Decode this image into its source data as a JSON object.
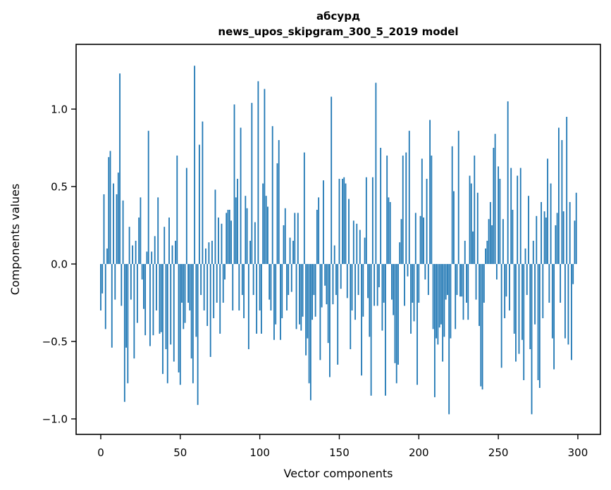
{
  "figure": {
    "background_color": "#ffffff",
    "text_color": "#000000"
  },
  "title": {
    "line1": "абсурд",
    "line2": "news_upos_skipgram_300_5_2019 model"
  },
  "axes": {
    "xlabel": "Vector components",
    "ylabel": "Components values"
  },
  "chart_data": {
    "type": "bar",
    "title": "абсурд\nnews_upos_skipgram_300_5_2019 model",
    "xlabel": "Vector components",
    "ylabel": "Components values",
    "bar_color": "#1f77b4",
    "spine_color": "#000000",
    "grid": false,
    "legend": false,
    "n_components": 300,
    "bar_width_data_units": 0.8,
    "xlim": [
      -15.5,
      314.2
    ],
    "ylim": [
      -1.1,
      1.418
    ],
    "xticks": [
      0,
      50,
      100,
      150,
      200,
      250,
      300
    ],
    "xtick_labels": [
      "0",
      "50",
      "100",
      "150",
      "200",
      "250",
      "300"
    ],
    "yticks": [
      1.0,
      0.5,
      0.0,
      -0.5,
      -1.0
    ],
    "ytick_labels": [
      "1.0",
      "0.5",
      "0.0",
      "−0.5",
      "−1.0"
    ],
    "values": [
      -0.3,
      -0.19,
      0.45,
      -0.42,
      0.1,
      0.69,
      0.73,
      -0.54,
      0.52,
      -0.23,
      0.45,
      0.59,
      1.23,
      -0.27,
      0.41,
      -0.89,
      -0.54,
      -0.77,
      0.24,
      -0.23,
      0.12,
      -0.61,
      0.15,
      -0.38,
      0.3,
      0.43,
      -0.1,
      -0.29,
      -0.46,
      0.08,
      0.86,
      -0.53,
      0.08,
      -0.46,
      0.18,
      -0.3,
      0.43,
      -0.45,
      -0.44,
      -0.71,
      0.24,
      -0.55,
      -0.77,
      0.3,
      -0.52,
      0.12,
      -0.63,
      0.15,
      0.7,
      -0.7,
      -0.78,
      -0.25,
      -0.42,
      -0.38,
      0.62,
      -0.25,
      -0.3,
      -0.61,
      -0.77,
      1.28,
      -0.47,
      -0.91,
      0.77,
      -0.2,
      0.92,
      -0.3,
      0.1,
      -0.4,
      0.14,
      -0.6,
      0.15,
      -0.35,
      0.48,
      -0.25,
      0.3,
      -0.45,
      0.26,
      -0.25,
      -0.1,
      0.33,
      0.35,
      0.35,
      0.28,
      -0.3,
      1.03,
      0.43,
      0.55,
      -0.3,
      0.88,
      -0.2,
      -0.35,
      0.44,
      0.36,
      -0.55,
      0.15,
      1.04,
      -0.2,
      0.27,
      -0.45,
      1.18,
      -0.3,
      -0.45,
      0.52,
      1.13,
      0.44,
      0.37,
      -0.23,
      -0.3,
      0.89,
      -0.49,
      -0.39,
      0.65,
      0.8,
      -0.49,
      -0.35,
      0.25,
      0.36,
      -0.3,
      -0.2,
      0.17,
      -0.18,
      0.15,
      0.33,
      -0.42,
      0.33,
      -0.39,
      -0.43,
      -0.34,
      0.72,
      -0.59,
      -0.48,
      -0.77,
      -0.88,
      -0.36,
      -0.2,
      -0.34,
      0.35,
      0.43,
      -0.62,
      -0.28,
      0.54,
      -0.14,
      -0.26,
      -0.51,
      -0.73,
      1.08,
      -0.26,
      0.12,
      -0.2,
      -0.65,
      0.55,
      -0.16,
      0.55,
      0.56,
      0.52,
      -0.22,
      0.42,
      -0.55,
      -0.3,
      0.28,
      -0.36,
      0.26,
      -0.2,
      0.22,
      -0.72,
      -0.34,
      0.17,
      0.56,
      -0.22,
      -0.47,
      -0.85,
      0.56,
      -0.27,
      1.17,
      -0.27,
      -0.15,
      0.75,
      -0.43,
      -0.25,
      -0.85,
      0.7,
      0.43,
      0.4,
      -0.23,
      -0.33,
      -0.64,
      -0.77,
      -0.65,
      0.14,
      0.29,
      0.7,
      -0.27,
      0.72,
      -0.08,
      0.86,
      -0.45,
      -0.25,
      -0.37,
      0.33,
      -0.78,
      -0.25,
      0.31,
      0.68,
      0.3,
      -0.1,
      0.55,
      -0.2,
      0.93,
      0.7,
      -0.42,
      -0.86,
      -0.48,
      -0.52,
      -0.41,
      -0.39,
      -0.63,
      -0.47,
      -0.23,
      -0.2,
      -0.97,
      -0.48,
      0.76,
      0.47,
      -0.42,
      -0.2,
      0.86,
      -0.21,
      -0.21,
      -0.36,
      0.15,
      -0.25,
      -0.36,
      0.57,
      0.52,
      0.21,
      0.7,
      -0.23,
      0.46,
      -0.4,
      -0.79,
      -0.81,
      -0.25,
      0.1,
      0.15,
      0.29,
      0.4,
      0.25,
      0.75,
      0.84,
      -0.1,
      0.63,
      0.55,
      -0.67,
      0.29,
      -0.35,
      -0.21,
      1.05,
      -0.3,
      0.62,
      0.35,
      -0.45,
      -0.63,
      0.57,
      -0.58,
      0.62,
      -0.49,
      -0.75,
      0.1,
      -0.2,
      0.44,
      -0.55,
      -0.97,
      0.15,
      -0.39,
      0.31,
      -0.75,
      -0.8,
      0.4,
      -0.35,
      0.34,
      0.3,
      0.68,
      -0.25,
      0.52,
      -0.48,
      -0.68,
      0.25,
      0.33,
      0.88,
      -0.25,
      0.8,
      0.34,
      -0.48,
      0.95,
      -0.52,
      0.4,
      -0.62,
      -0.13,
      0.28,
      0.46
    ]
  }
}
